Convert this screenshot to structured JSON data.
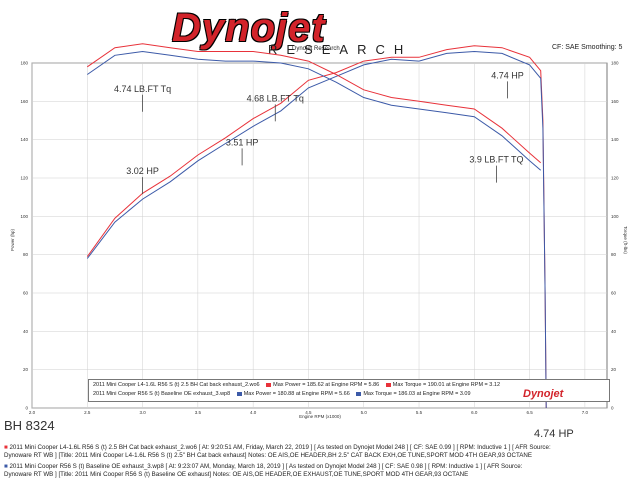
{
  "header": {
    "logo_text": "Dynojet",
    "subtitle": "RESEARCH",
    "subtitle_overlay": "Dynojet Research",
    "cf_label": "CF: SAE Smoothing: 5"
  },
  "chart_data": {
    "type": "line",
    "xlabel": "Engine RPM (x1000)",
    "ylabel_left": "Power (hp)",
    "ylabel_right": "Torque (ft-lbs)",
    "xlim": [
      2.0,
      7.2
    ],
    "ylim": [
      0,
      180
    ],
    "x_ticks": [
      "2.0",
      "2.5",
      "3.0",
      "3.5",
      "4.0",
      "4.5",
      "5.0",
      "5.5",
      "6.0",
      "6.5",
      "7.0"
    ],
    "y_ticks": [
      "0",
      "20",
      "40",
      "60",
      "80",
      "100",
      "120",
      "140",
      "160",
      "180"
    ],
    "grid": true,
    "series": [
      {
        "name": "2011 Mini Cooper L4-1.6L R56 S (t) 2.5 BH Cat back exhaust_2.wo6",
        "metric": "power",
        "color": "#e8323a",
        "x": [
          2.5,
          2.75,
          3.0,
          3.25,
          3.5,
          3.75,
          4.0,
          4.25,
          4.5,
          4.75,
          5.0,
          5.25,
          5.5,
          5.75,
          6.0,
          6.25,
          6.5,
          6.6,
          6.62
        ],
        "values": [
          79,
          99,
          112,
          121,
          132,
          141,
          151,
          159,
          171,
          175,
          181,
          183,
          183,
          187,
          189,
          188,
          183,
          176,
          150
        ]
      },
      {
        "name": "2011 Mini Cooper R56 S (t) Baseline OE exhaust_3.wp8",
        "metric": "power",
        "color": "#3c5aa8",
        "x": [
          2.5,
          2.75,
          3.0,
          3.25,
          3.5,
          3.75,
          4.0,
          4.25,
          4.5,
          4.75,
          5.0,
          5.25,
          5.5,
          5.75,
          6.0,
          6.25,
          6.5,
          6.6,
          6.62
        ],
        "values": [
          78,
          97,
          109,
          118,
          129,
          138,
          147,
          155,
          167,
          173,
          179,
          182,
          181,
          185,
          186,
          185,
          179,
          172,
          146
        ]
      },
      {
        "name": "Torque - 2011 Mini Cooper L4-1.6L R56 S (t) 2.5 BH Cat back exhaust_2.wo6",
        "metric": "torque",
        "color": "#e8323a",
        "x": [
          2.5,
          2.75,
          3.0,
          3.25,
          3.5,
          3.75,
          4.0,
          4.25,
          4.5,
          4.75,
          5.0,
          5.25,
          5.5,
          5.75,
          6.0,
          6.25,
          6.5,
          6.6
        ],
        "values": [
          178,
          188,
          190,
          188,
          186,
          186,
          186,
          184,
          181,
          174,
          166,
          162,
          160,
          158,
          156,
          146,
          133,
          128
        ]
      },
      {
        "name": "Torque - 2011 Mini Cooper R56 S (t) Baseline OE exhaust_3.wp8",
        "metric": "torque",
        "color": "#3c5aa8",
        "x": [
          2.5,
          2.75,
          3.0,
          3.25,
          3.5,
          3.75,
          4.0,
          4.25,
          4.5,
          4.75,
          5.0,
          5.25,
          5.5,
          5.75,
          6.0,
          6.25,
          6.5,
          6.6
        ],
        "values": [
          174,
          184,
          186,
          184,
          182,
          181,
          181,
          180,
          177,
          170,
          162,
          158,
          156,
          154,
          152,
          142,
          129,
          124
        ]
      }
    ],
    "annotations": [
      {
        "text": "4.74 LB.FT Tq",
        "x": 3.0,
        "y": 165
      },
      {
        "text": "4.68 LB.FT Tq",
        "x": 4.2,
        "y": 160
      },
      {
        "text": "4.74 HP",
        "x": 6.3,
        "y": 172
      },
      {
        "text": "3.51 HP",
        "x": 3.9,
        "y": 137
      },
      {
        "text": "3.02 HP",
        "x": 3.0,
        "y": 122
      },
      {
        "text": "3.9 LB.FT TQ",
        "x": 6.2,
        "y": 128
      }
    ]
  },
  "legend": {
    "row1": {
      "run": "2011 Mini Cooper L4-1.6L R56 S (t) 2.5 BH Cat back exhaust_2.wo6",
      "max_power": "Max Power = 185.62 at Engine RPM = 5.86",
      "max_torque": "Max Torque = 190.01 at Engine RPM = 3.12"
    },
    "row2": {
      "run": "2011 Mini Cooper R56 S (t) Baseline OE exhaust_3.wp8",
      "max_power": "Max Power = 180.88 at Engine RPM = 5.66",
      "max_torque": "Max Torque = 186.03 at Engine RPM = 3.09"
    },
    "logo": "Dynojet"
  },
  "notes": {
    "bh_number": "BH 8324",
    "bottom_right": "4.74 HP",
    "footer1": "2011 Mini Cooper L4-1.6L R56 S (t) 2.5 BH Cat back exhaust_2.wo6 [ At: 9:20:51 AM, Friday, March 22, 2019 ] [ As tested on Dynojet Model 248 ] [ CF: SAE 0.99 ] [ RPM: Inductive 1 ] [ AFR Source:",
    "footer2": "Dynoware RT WB ] [Title: 2011 Mini Cooper L4-1.6L R56 S (t) 2.5\" BH Cat back exhaust]  Notes: OE AIS,OE HEADER,BH 2.5\" CAT BACK EXH,OE TUNE,SPORT MOD 4TH GEAR,93 OCTANE",
    "footer3": "2011 Mini Cooper R56 S (t) Baseline OE exhaust_3.wp8 [ At: 9:23:07 AM, Monday, March 18, 2019 ] [ As tested on Dynojet Model 248 ] [ CF: SAE 0.98 ] [ RPM: Inductive 1 ] [ AFR Source:",
    "footer4": "Dynoware RT WB ] [Title: 2011 Mini Cooper R56 S (t) Baseline OE exhaust]  Notes: OE AIS,OE HEADER,OE EXHAUST,OE TUNE,SPORT MOD 4TH GEAR,93 OCTANE"
  }
}
